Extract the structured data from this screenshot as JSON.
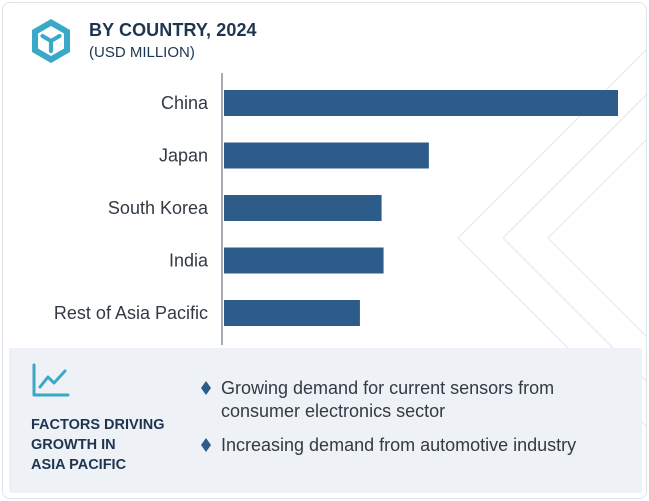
{
  "header": {
    "title": "BY COUNTRY, 2024",
    "subtitle": "(USD MILLION)",
    "icon": "cube-logo-icon"
  },
  "colors": {
    "bar": "#2e5c8a",
    "accent": "#3aa8c7",
    "text": "#1e3550",
    "footer_bg": "#eef1f6"
  },
  "chart_data": {
    "type": "bar",
    "orientation": "horizontal",
    "categories": [
      "China",
      "Japan",
      "South Korea",
      "India",
      "Rest of Asia Pacific"
    ],
    "values": [
      100,
      52,
      40,
      40.5,
      34.5
    ],
    "xlabel": "",
    "ylabel": "",
    "xlim": [
      0,
      100
    ],
    "grid": false,
    "legend": "none"
  },
  "footer": {
    "icon": "line-chart-icon",
    "title_lines": [
      "FACTORS DRIVING",
      "GROWTH IN",
      "ASIA PACIFIC"
    ],
    "factors": [
      {
        "text": "Growing demand for current sensors from consumer electronics sector"
      },
      {
        "text": "Increasing demand from automotive industry"
      }
    ]
  }
}
